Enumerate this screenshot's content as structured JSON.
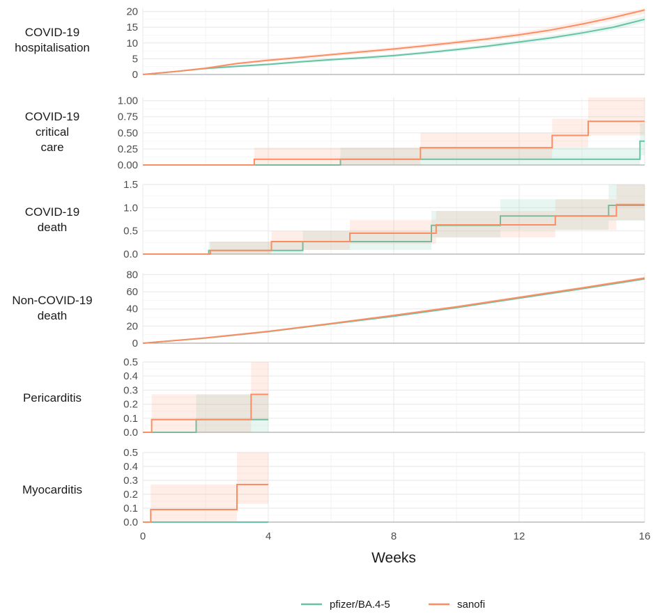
{
  "chart_data": {
    "type": "line",
    "xlabel": "Weeks",
    "xlim": [
      0,
      16
    ],
    "x_ticks": [
      "0",
      "4",
      "8",
      "12",
      "16"
    ],
    "x_tick_values": [
      0,
      4,
      8,
      12,
      16
    ],
    "grid": true,
    "legend_position": "bottom",
    "series_styles": [
      {
        "name": "pfizer/BA.4-5",
        "color": "#66c2a5"
      },
      {
        "name": "sanofi",
        "color": "#fc8d62"
      }
    ],
    "panels": [
      {
        "id": "hosp",
        "label": [
          "COVID-19",
          "hospitalisation"
        ],
        "ylim": [
          0,
          21
        ],
        "y_ticks": [
          0,
          5,
          10,
          15,
          20
        ],
        "y_tick_labels": [
          "0",
          "5",
          "10",
          "15",
          "20"
        ],
        "series": [
          {
            "name": "pfizer/BA.4-5",
            "x": [
              0,
              1,
              2,
              3,
              4,
              5,
              6,
              7,
              8,
              9,
              10,
              11,
              12,
              13,
              14,
              15,
              16
            ],
            "y": [
              0,
              0.9,
              1.9,
              2.6,
              3.2,
              4.0,
              4.7,
              5.3,
              6.0,
              6.9,
              7.9,
              9.0,
              10.3,
              11.6,
              13.2,
              15.0,
              17.5
            ],
            "lower": [
              0,
              0.7,
              1.6,
              2.2,
              2.8,
              3.5,
              4.2,
              4.8,
              5.5,
              6.4,
              7.3,
              8.4,
              9.6,
              10.9,
              12.4,
              14.1,
              16.4
            ],
            "upper": [
              0,
              1.1,
              2.2,
              3.0,
              3.6,
              4.5,
              5.2,
              5.8,
              6.5,
              7.4,
              8.5,
              9.6,
              11.0,
              12.4,
              14.0,
              16.0,
              18.6
            ]
          },
          {
            "name": "sanofi",
            "x": [
              0,
              1,
              2,
              3,
              4,
              5,
              6,
              7,
              8,
              9,
              10,
              11,
              12,
              13,
              14,
              15,
              16
            ],
            "y": [
              0,
              0.9,
              2.0,
              3.5,
              4.5,
              5.4,
              6.3,
              7.2,
              8.1,
              9.1,
              10.2,
              11.3,
              12.6,
              14.1,
              16.0,
              18.1,
              20.5
            ],
            "lower": [
              0,
              0.7,
              1.7,
              3.1,
              4.0,
              4.9,
              5.8,
              6.6,
              7.5,
              8.5,
              9.5,
              10.6,
              11.8,
              13.2,
              15.0,
              17.1,
              19.3
            ],
            "upper": [
              0,
              1.1,
              2.3,
              3.9,
              5.0,
              5.9,
              6.8,
              7.8,
              8.7,
              9.7,
              10.9,
              12.0,
              13.4,
              15.0,
              17.0,
              19.1,
              21.0
            ]
          }
        ]
      },
      {
        "id": "critical",
        "label": [
          "COVID-19",
          "critical",
          "care"
        ],
        "ylim": [
          0,
          1.05
        ],
        "y_ticks": [
          0,
          0.25,
          0.5,
          0.75,
          1.0
        ],
        "y_tick_labels": [
          "0.00",
          "0.25",
          "0.50",
          "0.75",
          "1.00"
        ],
        "series": [
          {
            "name": "pfizer/BA.4-5",
            "step": true,
            "x": [
              0,
              6.3,
              15.85,
              16
            ],
            "y": [
              0,
              0.09,
              0.37,
              0.37
            ],
            "lower": [
              0,
              0.0,
              0.15,
              0.15
            ],
            "upper": [
              0,
              0.27,
              0.65,
              0.65
            ]
          },
          {
            "name": "sanofi",
            "step": true,
            "x": [
              0,
              3.55,
              8.85,
              13.05,
              14.2,
              16
            ],
            "y": [
              0,
              0.09,
              0.27,
              0.46,
              0.68,
              0.68
            ],
            "lower": [
              0,
              0.0,
              0.09,
              0.27,
              0.46,
              0.46
            ],
            "upper": [
              0,
              0.27,
              0.5,
              0.72,
              1.05,
              1.05
            ]
          }
        ]
      },
      {
        "id": "death",
        "label": [
          "COVID-19",
          "death"
        ],
        "ylim": [
          0,
          1.5
        ],
        "y_ticks": [
          0,
          0.5,
          1.0,
          1.5
        ],
        "y_tick_labels": [
          "0.0",
          "0.5",
          "1.0",
          "1.5"
        ],
        "series": [
          {
            "name": "pfizer/BA.4-5",
            "step": true,
            "x": [
              0,
              2.1,
              5.1,
              9.2,
              11.4,
              14.85,
              16
            ],
            "y": [
              0,
              0.08,
              0.27,
              0.62,
              0.82,
              1.05,
              1.05
            ],
            "lower": [
              0,
              0.0,
              0.09,
              0.36,
              0.52,
              0.72,
              0.72
            ],
            "upper": [
              0,
              0.27,
              0.5,
              0.93,
              1.18,
              1.5,
              1.5
            ]
          },
          {
            "name": "sanofi",
            "step": true,
            "x": [
              0,
              2.15,
              4.1,
              6.6,
              9.35,
              13.15,
              15.1,
              16
            ],
            "y": [
              0,
              0.08,
              0.27,
              0.45,
              0.63,
              0.82,
              1.07,
              1.07
            ],
            "lower": [
              0,
              0.0,
              0.09,
              0.22,
              0.36,
              0.52,
              0.73,
              0.73
            ],
            "upper": [
              0,
              0.27,
              0.5,
              0.73,
              0.93,
              1.18,
              1.5,
              1.5
            ]
          }
        ]
      },
      {
        "id": "noncovid",
        "label": [
          "Non-COVID-19",
          "death"
        ],
        "ylim": [
          0,
          82
        ],
        "y_ticks": [
          0,
          20,
          40,
          60,
          80
        ],
        "y_tick_labels": [
          "0",
          "20",
          "40",
          "60",
          "80"
        ],
        "series": [
          {
            "name": "pfizer/BA.4-5",
            "x": [
              0,
              2,
              4,
              6,
              8,
              10,
              12,
              14,
              16
            ],
            "y": [
              0,
              6.0,
              13.5,
              22.5,
              31.5,
              41.5,
              52.5,
              63.5,
              75.0
            ],
            "lower": [
              0,
              5.5,
              12.8,
              21.6,
              30.5,
              40.4,
              51.3,
              62.2,
              73.6
            ],
            "upper": [
              0,
              6.5,
              14.2,
              23.4,
              32.5,
              42.6,
              53.7,
              64.8,
              76.4
            ]
          },
          {
            "name": "sanofi",
            "x": [
              0,
              2,
              4,
              6,
              8,
              10,
              12,
              14,
              16
            ],
            "y": [
              0,
              6.2,
              13.8,
              23.0,
              32.5,
              42.5,
              53.5,
              64.5,
              76.0
            ],
            "lower": [
              0,
              5.7,
              13.1,
              22.1,
              31.5,
              41.4,
              52.3,
              63.2,
              74.6
            ],
            "upper": [
              0,
              6.7,
              14.5,
              23.9,
              33.5,
              43.6,
              54.7,
              65.8,
              77.4
            ]
          }
        ]
      },
      {
        "id": "pericarditis",
        "label": [
          "Pericarditis"
        ],
        "ylim": [
          0,
          0.5
        ],
        "y_ticks": [
          0,
          0.1,
          0.2,
          0.3,
          0.4,
          0.5
        ],
        "y_tick_labels": [
          "0.0",
          "0.1",
          "0.2",
          "0.3",
          "0.4",
          "0.5"
        ],
        "series": [
          {
            "name": "pfizer/BA.4-5",
            "step": true,
            "x": [
              0,
              1.7,
              3.45,
              4.0
            ],
            "y": [
              0,
              0.09,
              0.09,
              0.09
            ],
            "lower": [
              0,
              0.0,
              0.0,
              0.0
            ],
            "upper": [
              0,
              0.27,
              0.27,
              0.27
            ]
          },
          {
            "name": "sanofi",
            "step": true,
            "x": [
              0,
              0.28,
              3.45,
              4.0
            ],
            "y": [
              0,
              0.09,
              0.27,
              0.27
            ],
            "lower": [
              0,
              0.0,
              0.09,
              0.09
            ],
            "upper": [
              0,
              0.27,
              0.5,
              0.5
            ]
          }
        ]
      },
      {
        "id": "myocarditis",
        "label": [
          "Myocarditis"
        ],
        "ylim": [
          0,
          0.5
        ],
        "y_ticks": [
          0,
          0.1,
          0.2,
          0.3,
          0.4,
          0.5
        ],
        "y_tick_labels": [
          "0.0",
          "0.1",
          "0.2",
          "0.3",
          "0.4",
          "0.5"
        ],
        "series": [
          {
            "name": "pfizer/BA.4-5",
            "step": true,
            "x": [
              0,
              4.0
            ],
            "y": [
              0,
              0
            ],
            "lower": [
              0,
              0
            ],
            "upper": [
              0,
              0
            ]
          },
          {
            "name": "sanofi",
            "step": true,
            "x": [
              0,
              0.25,
              3.0,
              4.0
            ],
            "y": [
              0,
              0.09,
              0.27,
              0.27
            ],
            "lower": [
              0,
              0.0,
              0.13,
              0.13
            ],
            "upper": [
              0,
              0.27,
              0.5,
              0.5
            ]
          }
        ]
      }
    ]
  }
}
